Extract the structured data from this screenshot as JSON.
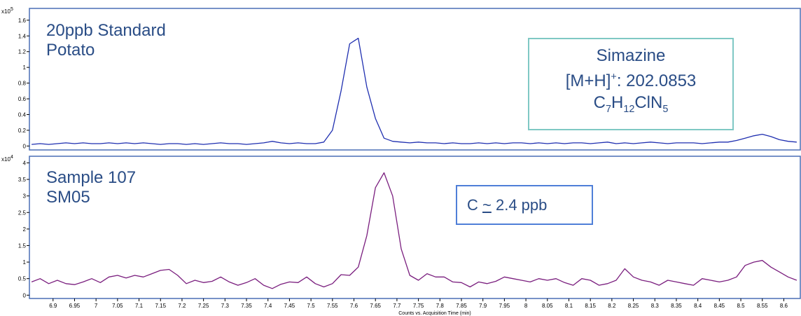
{
  "chart_data": [
    {
      "type": "line",
      "panel": "top",
      "ylabel": "",
      "xlabel": "Counts vs. Acquisition Time (min)",
      "y_scale_label": "x10",
      "y_scale_exp": "5",
      "ylim": [
        -0.05,
        1.75
      ],
      "yticks": [
        0,
        0.2,
        0.4,
        0.6,
        0.8,
        1,
        1.2,
        1.4,
        1.6
      ],
      "ytick_labels": [
        "0",
        "0.2",
        "0.4",
        "0.6",
        "0.8",
        "1",
        "1.2",
        "1.4",
        "1.6"
      ],
      "xlim": [
        6.845,
        8.64
      ],
      "color": "#1f2fb0",
      "series": [
        {
          "x": [
            6.85,
            6.87,
            6.89,
            6.91,
            6.93,
            6.95,
            6.97,
            6.99,
            7.01,
            7.03,
            7.05,
            7.07,
            7.09,
            7.11,
            7.13,
            7.15,
            7.17,
            7.19,
            7.21,
            7.23,
            7.25,
            7.27,
            7.29,
            7.31,
            7.33,
            7.35,
            7.37,
            7.39,
            7.41,
            7.43,
            7.45,
            7.47,
            7.49,
            7.51,
            7.53,
            7.55,
            7.57,
            7.59,
            7.61,
            7.63,
            7.65,
            7.67,
            7.69,
            7.71,
            7.73,
            7.75,
            7.77,
            7.79,
            7.81,
            7.83,
            7.85,
            7.87,
            7.89,
            7.91,
            7.93,
            7.95,
            7.97,
            7.99,
            8.01,
            8.03,
            8.05,
            8.07,
            8.09,
            8.11,
            8.13,
            8.15,
            8.17,
            8.19,
            8.21,
            8.23,
            8.25,
            8.27,
            8.29,
            8.31,
            8.33,
            8.35,
            8.37,
            8.39,
            8.41,
            8.43,
            8.45,
            8.47,
            8.49,
            8.51,
            8.53,
            8.55,
            8.57,
            8.59,
            8.61,
            8.63
          ],
          "y": [
            0.02,
            0.03,
            0.02,
            0.03,
            0.04,
            0.03,
            0.04,
            0.03,
            0.03,
            0.04,
            0.03,
            0.04,
            0.03,
            0.04,
            0.03,
            0.02,
            0.03,
            0.03,
            0.02,
            0.03,
            0.02,
            0.03,
            0.04,
            0.03,
            0.03,
            0.02,
            0.03,
            0.04,
            0.06,
            0.04,
            0.03,
            0.04,
            0.03,
            0.03,
            0.05,
            0.2,
            0.7,
            1.3,
            1.37,
            0.75,
            0.35,
            0.1,
            0.06,
            0.05,
            0.04,
            0.05,
            0.04,
            0.04,
            0.03,
            0.04,
            0.03,
            0.03,
            0.04,
            0.03,
            0.04,
            0.03,
            0.04,
            0.04,
            0.03,
            0.04,
            0.03,
            0.04,
            0.03,
            0.04,
            0.04,
            0.03,
            0.04,
            0.05,
            0.03,
            0.04,
            0.03,
            0.04,
            0.05,
            0.04,
            0.03,
            0.04,
            0.04,
            0.04,
            0.03,
            0.04,
            0.05,
            0.05,
            0.07,
            0.1,
            0.13,
            0.15,
            0.12,
            0.08,
            0.06,
            0.05
          ]
        }
      ],
      "annotation_lines": [
        "20ppb Standard",
        "Potato"
      ],
      "info_box": {
        "line1": "Simazine",
        "line2_pre": "[M+H]",
        "line2_sup": "+",
        "line2_post": ": 202.0853",
        "formula": [
          {
            "t": "C",
            "sub": "7"
          },
          {
            "t": "H",
            "sub": "12"
          },
          {
            "t": "ClN",
            "sub": "5"
          }
        ],
        "border_color": "#7fc8c4"
      }
    },
    {
      "type": "line",
      "panel": "bottom",
      "ylabel": "",
      "xlabel": "Counts vs. Acquisition Time (min)",
      "y_scale_label": "x10",
      "y_scale_exp": "4",
      "ylim": [
        -0.1,
        4.2
      ],
      "yticks": [
        0,
        0.5,
        1,
        1.5,
        2,
        2.5,
        3,
        3.5,
        4
      ],
      "ytick_labels": [
        "0",
        "0.5",
        "1",
        "1.5",
        "2",
        "2.5",
        "3",
        "3.5",
        "4"
      ],
      "xlim": [
        6.845,
        8.64
      ],
      "xticks": [
        6.9,
        6.95,
        7,
        7.05,
        7.1,
        7.15,
        7.2,
        7.25,
        7.3,
        7.35,
        7.4,
        7.45,
        7.5,
        7.55,
        7.6,
        7.65,
        7.7,
        7.75,
        7.8,
        7.85,
        7.9,
        7.95,
        8,
        8.05,
        8.1,
        8.15,
        8.2,
        8.25,
        8.3,
        8.35,
        8.4,
        8.45,
        8.5,
        8.55,
        8.6
      ],
      "xtick_labels": [
        "6.9",
        "6.95",
        "7",
        "7.05",
        "7.1",
        "7.15",
        "7.2",
        "7.25",
        "7.3",
        "7.35",
        "7.4",
        "7.45",
        "7.5",
        "7.55",
        "7.6",
        "7.65",
        "7.7",
        "7.75",
        "7.8",
        "7.85",
        "7.9",
        "7.95",
        "8",
        "8.05",
        "8.1",
        "8.15",
        "8.2",
        "8.25",
        "8.3",
        "8.35",
        "8.4",
        "8.45",
        "8.5",
        "8.55",
        "8.6"
      ],
      "color": "#7a1e7e",
      "series": [
        {
          "x": [
            6.85,
            6.87,
            6.89,
            6.91,
            6.93,
            6.95,
            6.97,
            6.99,
            7.01,
            7.03,
            7.05,
            7.07,
            7.09,
            7.11,
            7.13,
            7.15,
            7.17,
            7.19,
            7.21,
            7.23,
            7.25,
            7.27,
            7.29,
            7.31,
            7.33,
            7.35,
            7.37,
            7.39,
            7.41,
            7.43,
            7.45,
            7.47,
            7.49,
            7.51,
            7.53,
            7.55,
            7.57,
            7.59,
            7.61,
            7.63,
            7.65,
            7.67,
            7.69,
            7.71,
            7.73,
            7.75,
            7.77,
            7.79,
            7.81,
            7.83,
            7.85,
            7.87,
            7.89,
            7.91,
            7.93,
            7.95,
            7.97,
            7.99,
            8.01,
            8.03,
            8.05,
            8.07,
            8.09,
            8.11,
            8.13,
            8.15,
            8.17,
            8.19,
            8.21,
            8.23,
            8.25,
            8.27,
            8.29,
            8.31,
            8.33,
            8.35,
            8.37,
            8.39,
            8.41,
            8.43,
            8.45,
            8.47,
            8.49,
            8.51,
            8.53,
            8.55,
            8.57,
            8.59,
            8.61,
            8.63
          ],
          "y": [
            0.4,
            0.5,
            0.35,
            0.45,
            0.35,
            0.32,
            0.4,
            0.5,
            0.38,
            0.55,
            0.6,
            0.52,
            0.6,
            0.55,
            0.65,
            0.75,
            0.78,
            0.6,
            0.35,
            0.45,
            0.38,
            0.42,
            0.55,
            0.4,
            0.3,
            0.38,
            0.5,
            0.3,
            0.2,
            0.33,
            0.4,
            0.38,
            0.55,
            0.35,
            0.25,
            0.35,
            0.62,
            0.6,
            0.85,
            1.8,
            3.25,
            3.7,
            3.0,
            1.4,
            0.6,
            0.45,
            0.65,
            0.55,
            0.55,
            0.4,
            0.38,
            0.25,
            0.4,
            0.35,
            0.42,
            0.55,
            0.5,
            0.45,
            0.4,
            0.5,
            0.45,
            0.5,
            0.38,
            0.3,
            0.5,
            0.45,
            0.3,
            0.35,
            0.45,
            0.8,
            0.55,
            0.45,
            0.4,
            0.3,
            0.45,
            0.4,
            0.35,
            0.3,
            0.5,
            0.45,
            0.4,
            0.45,
            0.55,
            0.9,
            1.0,
            1.05,
            0.85,
            0.7,
            0.55,
            0.45
          ]
        }
      ],
      "annotation_lines": [
        "Sample 107",
        "SM05"
      ],
      "info_box": {
        "pre": "C ",
        "approx": "~",
        "post": " 2.4 ppb",
        "border_color": "#4f7fd8"
      }
    }
  ]
}
